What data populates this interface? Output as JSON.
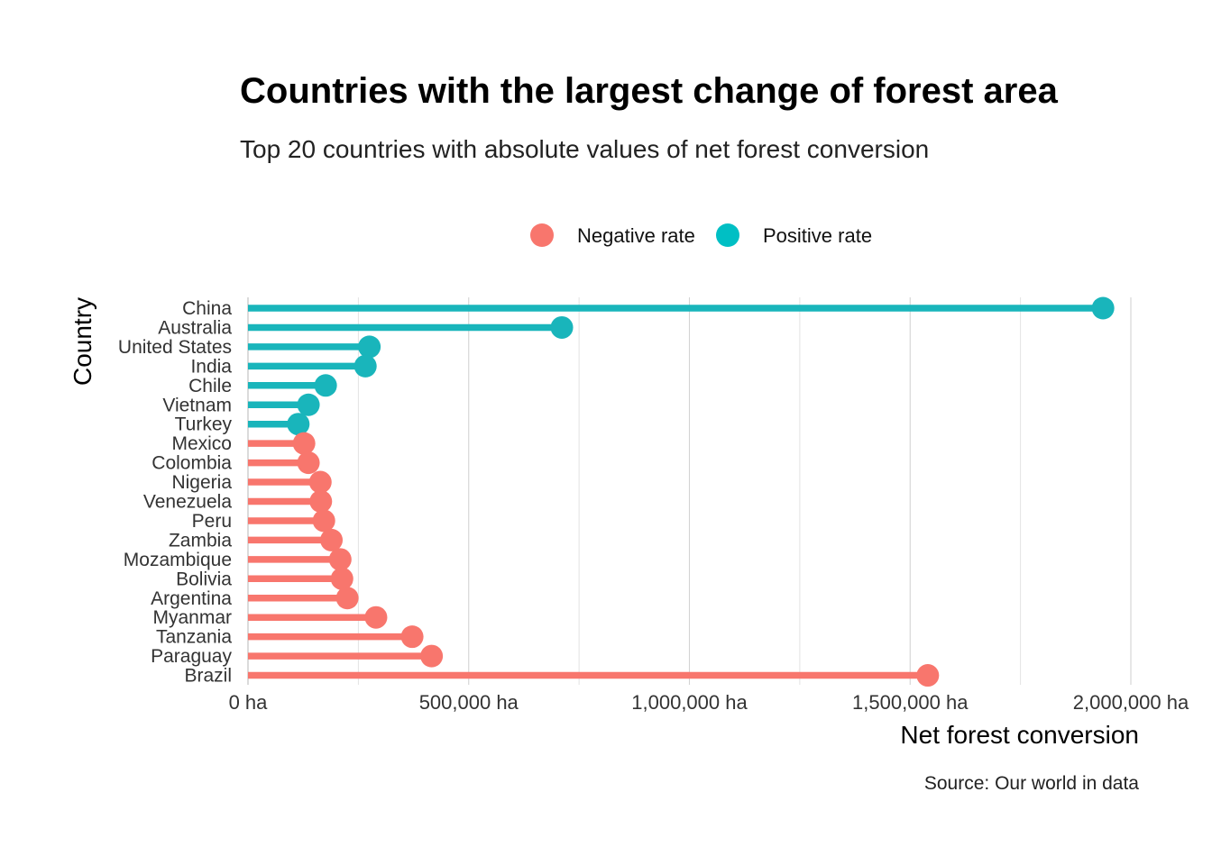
{
  "chart_data": {
    "type": "lollipop",
    "title": "Countries with the largest change of forest area",
    "subtitle": "Top 20 countries with absolute values of net forest conversion",
    "xlabel": "Net forest conversion",
    "ylabel": "Country",
    "caption": "Source: Our world in data",
    "xlim": [
      0,
      2000000
    ],
    "x_ticks": [
      0,
      500000,
      1000000,
      1500000,
      2000000
    ],
    "x_tick_labels": [
      "0 ha",
      "500,000 ha",
      "1,000,000 ha",
      "1,500,000 ha",
      "2,000,000 ha"
    ],
    "grid": true,
    "legend": {
      "position": "top",
      "entries": [
        {
          "label": "Negative rate",
          "color": "#F8766D"
        },
        {
          "label": "Positive rate",
          "color": "#00BFC4"
        }
      ]
    },
    "colors": {
      "negative": "#F8766D",
      "positive": "#19B5BB"
    },
    "points": [
      {
        "country": "China",
        "value": 1937000,
        "rate": "positive"
      },
      {
        "country": "Australia",
        "value": 711000,
        "rate": "positive"
      },
      {
        "country": "United States",
        "value": 275000,
        "rate": "positive"
      },
      {
        "country": "India",
        "value": 266000,
        "rate": "positive"
      },
      {
        "country": "Chile",
        "value": 176000,
        "rate": "positive"
      },
      {
        "country": "Vietnam",
        "value": 137000,
        "rate": "positive"
      },
      {
        "country": "Turkey",
        "value": 114000,
        "rate": "positive"
      },
      {
        "country": "Mexico",
        "value": 127000,
        "rate": "negative"
      },
      {
        "country": "Colombia",
        "value": 137000,
        "rate": "negative"
      },
      {
        "country": "Nigeria",
        "value": 164000,
        "rate": "negative"
      },
      {
        "country": "Venezuela",
        "value": 165000,
        "rate": "negative"
      },
      {
        "country": "Peru",
        "value": 172000,
        "rate": "negative"
      },
      {
        "country": "Zambia",
        "value": 189000,
        "rate": "negative"
      },
      {
        "country": "Mozambique",
        "value": 209000,
        "rate": "negative"
      },
      {
        "country": "Bolivia",
        "value": 213000,
        "rate": "negative"
      },
      {
        "country": "Argentina",
        "value": 225000,
        "rate": "negative"
      },
      {
        "country": "Myanmar",
        "value": 290000,
        "rate": "negative"
      },
      {
        "country": "Tanzania",
        "value": 372000,
        "rate": "negative"
      },
      {
        "country": "Paraguay",
        "value": 416000,
        "rate": "negative"
      },
      {
        "country": "Brazil",
        "value": 1540000,
        "rate": "negative"
      }
    ]
  }
}
